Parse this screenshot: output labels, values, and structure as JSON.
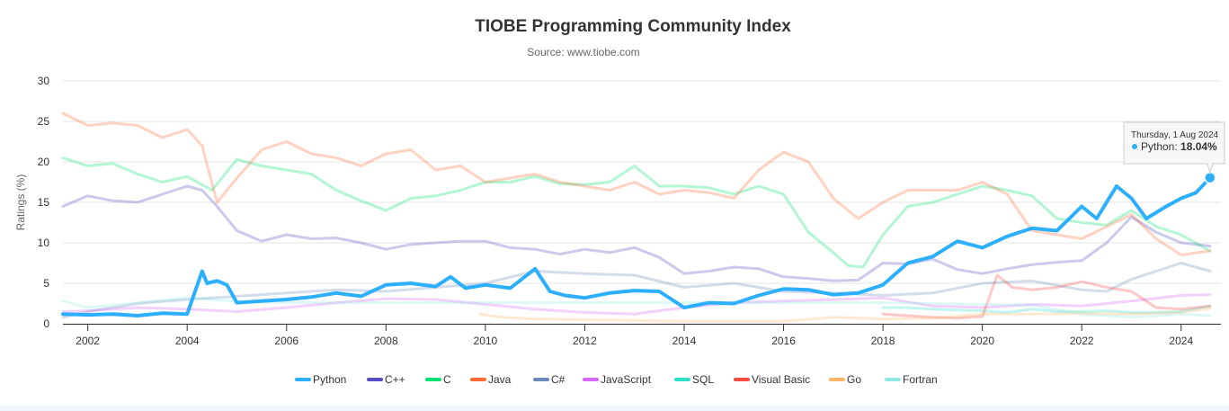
{
  "chart_data": {
    "type": "line",
    "title": "TIOBE Programming Community Index",
    "subtitle": "Source: www.tiobe.com",
    "ylabel": "Ratings (%)",
    "xlabel": "",
    "xlim": [
      2001.5,
      2024.8
    ],
    "ylim": [
      0,
      30
    ],
    "yticks": [
      0,
      5,
      10,
      15,
      20,
      25,
      30
    ],
    "xticks": [
      2002,
      2004,
      2006,
      2008,
      2010,
      2012,
      2014,
      2016,
      2018,
      2020,
      2022,
      2024
    ],
    "grid": true,
    "legend_position": "bottom",
    "tooltip": {
      "date": "Thursday, 1 Aug 2024",
      "series": "Python",
      "value_text": "18.04%",
      "x": 2024.58,
      "y": 18.04
    },
    "series": [
      {
        "name": "Python",
        "color": "#2caffe",
        "highlight": true,
        "x": [
          2001.5,
          2002,
          2002.5,
          2003,
          2003.5,
          2004,
          2004.3,
          2004.4,
          2004.6,
          2004.8,
          2005,
          2005.5,
          2006,
          2006.5,
          2007,
          2007.5,
          2008,
          2008.5,
          2009,
          2009.3,
          2009.6,
          2010,
          2010.5,
          2011,
          2011.3,
          2011.6,
          2012,
          2012.5,
          2013,
          2013.5,
          2014,
          2014.5,
          2015,
          2015.5,
          2016,
          2016.5,
          2017,
          2017.5,
          2018,
          2018.5,
          2019,
          2019.5,
          2020,
          2020.5,
          2021,
          2021.5,
          2022,
          2022.3,
          2022.7,
          2023,
          2023.3,
          2023.7,
          2024,
          2024.3,
          2024.58
        ],
        "values": [
          1.2,
          1.1,
          1.2,
          1.0,
          1.3,
          1.2,
          6.5,
          5.0,
          5.3,
          4.8,
          2.6,
          2.8,
          3.0,
          3.3,
          3.8,
          3.4,
          4.8,
          5.0,
          4.6,
          5.8,
          4.4,
          4.8,
          4.4,
          6.8,
          4.0,
          3.5,
          3.2,
          3.8,
          4.1,
          4.0,
          2.0,
          2.6,
          2.5,
          3.5,
          4.3,
          4.2,
          3.6,
          3.8,
          4.8,
          7.5,
          8.3,
          10.2,
          9.4,
          10.8,
          11.8,
          11.5,
          14.5,
          13.0,
          17.0,
          15.5,
          13.0,
          14.5,
          15.5,
          16.2,
          18.04
        ]
      },
      {
        "name": "C++",
        "color": "#544fc5",
        "x": [
          2001.5,
          2002,
          2002.5,
          2003,
          2003.5,
          2004,
          2004.3,
          2004.6,
          2005,
          2005.5,
          2006,
          2006.5,
          2007,
          2007.5,
          2008,
          2008.5,
          2009,
          2009.5,
          2010,
          2010.5,
          2011,
          2011.5,
          2012,
          2012.5,
          2013,
          2013.5,
          2014,
          2014.5,
          2015,
          2015.5,
          2016,
          2016.5,
          2017,
          2017.5,
          2018,
          2018.5,
          2019,
          2019.5,
          2020,
          2020.5,
          2021,
          2021.5,
          2022,
          2022.5,
          2023,
          2023.5,
          2024,
          2024.58
        ],
        "values": [
          14.5,
          15.8,
          15.2,
          15.0,
          16.0,
          17.0,
          16.5,
          14.5,
          11.5,
          10.2,
          11.0,
          10.5,
          10.6,
          10.0,
          9.2,
          9.8,
          10.0,
          10.2,
          10.2,
          9.4,
          9.2,
          8.6,
          9.2,
          8.8,
          9.4,
          8.2,
          6.2,
          6.5,
          7.0,
          6.8,
          5.8,
          5.6,
          5.3,
          5.4,
          7.5,
          7.4,
          8.0,
          6.7,
          6.2,
          6.8,
          7.3,
          7.6,
          7.8,
          10.0,
          13.2,
          11.3,
          10.0,
          9.6
        ]
      },
      {
        "name": "C",
        "color": "#00e272",
        "x": [
          2001.5,
          2002,
          2002.5,
          2003,
          2003.5,
          2004,
          2004.5,
          2005,
          2005.5,
          2006,
          2006.5,
          2007,
          2007.5,
          2008,
          2008.5,
          2009,
          2009.5,
          2010,
          2010.5,
          2011,
          2011.5,
          2012,
          2012.5,
          2013,
          2013.5,
          2014,
          2014.5,
          2015,
          2015.5,
          2016,
          2016.5,
          2017,
          2017.3,
          2017.6,
          2018,
          2018.5,
          2019,
          2019.5,
          2020,
          2020.5,
          2021,
          2021.5,
          2022,
          2022.5,
          2023,
          2023.5,
          2024,
          2024.58
        ],
        "values": [
          20.5,
          19.5,
          19.8,
          18.5,
          17.5,
          18.2,
          16.5,
          20.3,
          19.5,
          19.0,
          18.5,
          16.5,
          15.2,
          14.0,
          15.5,
          15.8,
          16.5,
          17.5,
          17.5,
          18.2,
          17.3,
          17.2,
          17.5,
          19.5,
          17.0,
          17.0,
          16.8,
          16.0,
          17.0,
          16.0,
          11.3,
          8.8,
          7.2,
          7.0,
          11.0,
          14.5,
          15.0,
          16.0,
          17.0,
          16.5,
          15.8,
          13.0,
          12.5,
          12.2,
          14.0,
          12.0,
          11.0,
          9.0
        ]
      },
      {
        "name": "Java",
        "color": "#fe6a35",
        "x": [
          2001.5,
          2002,
          2002.5,
          2003,
          2003.5,
          2004,
          2004.3,
          2004.6,
          2005,
          2005.5,
          2006,
          2006.5,
          2007,
          2007.5,
          2008,
          2008.5,
          2009,
          2009.5,
          2010,
          2010.5,
          2011,
          2011.5,
          2012,
          2012.5,
          2013,
          2013.5,
          2014,
          2014.5,
          2015,
          2015.5,
          2016,
          2016.5,
          2017,
          2017.5,
          2018,
          2018.5,
          2019,
          2019.5,
          2020,
          2020.5,
          2021,
          2021.5,
          2022,
          2022.5,
          2023,
          2023.5,
          2024,
          2024.58
        ],
        "values": [
          26.0,
          24.5,
          24.8,
          24.5,
          23.0,
          24.0,
          22.0,
          15.0,
          18.0,
          21.5,
          22.5,
          21.0,
          20.5,
          19.5,
          21.0,
          21.5,
          19.0,
          19.5,
          17.5,
          18.0,
          18.5,
          17.5,
          17.0,
          16.5,
          17.5,
          16.0,
          16.5,
          16.2,
          15.5,
          19.0,
          21.2,
          20.0,
          15.5,
          13.0,
          15.0,
          16.5,
          16.5,
          16.5,
          17.5,
          16.0,
          11.5,
          11.0,
          10.5,
          12.0,
          13.5,
          10.5,
          8.5,
          9.0
        ]
      },
      {
        "name": "C#",
        "color": "#6b8abc",
        "x": [
          2001.5,
          2002,
          2003,
          2004,
          2005,
          2006,
          2007,
          2008,
          2009,
          2010,
          2011,
          2012,
          2013,
          2014,
          2015,
          2016,
          2017,
          2018,
          2019,
          2020,
          2021,
          2022,
          2022.5,
          2023,
          2023.5,
          2024,
          2024.58
        ],
        "values": [
          0.8,
          1.5,
          2.5,
          3.0,
          3.4,
          3.8,
          4.2,
          4.0,
          4.5,
          5.0,
          6.5,
          6.2,
          6.0,
          4.5,
          5.0,
          4.0,
          3.8,
          3.5,
          3.8,
          5.0,
          5.3,
          4.2,
          4.0,
          5.5,
          6.5,
          7.5,
          6.5
        ]
      },
      {
        "name": "JavaScript",
        "color": "#d568fb",
        "x": [
          2001.5,
          2002,
          2003,
          2004,
          2005,
          2006,
          2007,
          2008,
          2009,
          2010,
          2011,
          2012,
          2013,
          2014,
          2015,
          2016,
          2017,
          2018,
          2019,
          2020,
          2021,
          2022,
          2023,
          2024,
          2024.58
        ],
        "values": [
          1.5,
          1.6,
          2.0,
          1.8,
          1.5,
          2.0,
          2.6,
          3.1,
          3.0,
          2.4,
          1.8,
          1.4,
          1.2,
          2.0,
          2.6,
          2.8,
          3.0,
          3.2,
          2.2,
          2.0,
          2.4,
          2.2,
          2.8,
          3.5,
          3.6
        ]
      },
      {
        "name": "SQL",
        "color": "#2ee0ca",
        "x": [
          2018,
          2018.5,
          2019,
          2019.5,
          2020,
          2020.5,
          2021,
          2021.5,
          2022,
          2022.5,
          2023,
          2023.5,
          2024,
          2024.58
        ],
        "values": [
          2.0,
          2.0,
          1.8,
          1.7,
          1.6,
          1.4,
          1.8,
          1.5,
          1.5,
          1.6,
          1.4,
          1.4,
          1.5,
          2.2
        ]
      },
      {
        "name": "Visual Basic",
        "color": "#fa4b42",
        "x": [
          2018,
          2018.5,
          2019,
          2019.5,
          2020,
          2020.3,
          2020.6,
          2021,
          2021.5,
          2022,
          2022.5,
          2023,
          2023.5,
          2024,
          2024.58
        ],
        "values": [
          1.2,
          1.0,
          0.8,
          0.7,
          0.9,
          6.0,
          4.5,
          4.2,
          4.5,
          5.2,
          4.5,
          4.0,
          2.0,
          1.8,
          2.2
        ]
      },
      {
        "name": "Go",
        "color": "#feb56a",
        "x": [
          2009.9,
          2010.3,
          2011,
          2012,
          2013,
          2014,
          2015,
          2016,
          2017,
          2018,
          2019,
          2020,
          2021,
          2022,
          2023,
          2024,
          2024.58
        ],
        "values": [
          1.2,
          0.8,
          0.6,
          0.5,
          0.4,
          0.3,
          0.3,
          0.3,
          0.8,
          0.6,
          0.7,
          1.2,
          1.2,
          1.3,
          1.2,
          1.4,
          1.9
        ]
      },
      {
        "name": "Fortran",
        "color": "#91e8e1",
        "x": [
          2001.5,
          2002,
          2003,
          2004,
          2005,
          2006,
          2007,
          2008,
          2009,
          2010,
          2011,
          2012,
          2013,
          2014,
          2015,
          2016,
          2017,
          2018,
          2019,
          2020,
          2021,
          2022,
          2023,
          2024,
          2024.58
        ],
        "values": [
          2.8,
          2.0,
          2.6,
          3.2,
          2.8,
          2.6,
          2.6,
          2.6,
          2.6,
          2.6,
          2.6,
          2.6,
          2.6,
          2.6,
          2.6,
          2.6,
          2.6,
          2.6,
          2.5,
          2.4,
          2.3,
          1.2,
          0.8,
          1.2,
          1.0
        ]
      }
    ]
  }
}
